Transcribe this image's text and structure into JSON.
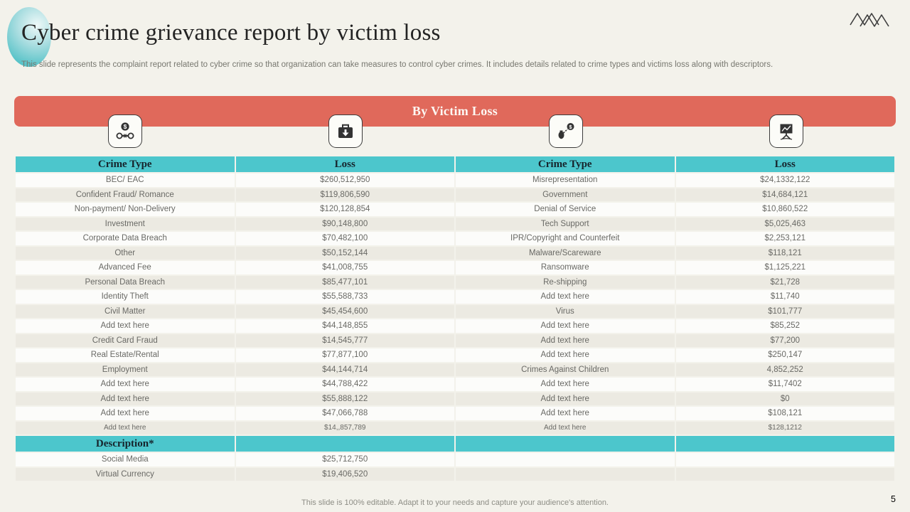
{
  "slide": {
    "title": "Cyber crime grievance report by victim loss",
    "subtitle": "This slide represents the complaint report related to cyber crime so that organization can take measures to control cyber crimes. It includes details related to crime types and victims loss along with descriptors.",
    "footer_note": "This slide is 100% editable. Adapt it to your needs and capture your audience's attention.",
    "page_number": "5"
  },
  "banner": {
    "label": "By Victim Loss"
  },
  "icons": [
    {
      "name": "dollar-handcuffs-icon"
    },
    {
      "name": "briefcase-download-icon"
    },
    {
      "name": "chained-dollar-icon"
    },
    {
      "name": "declining-chart-board-icon"
    }
  ],
  "colors": {
    "background": "#f3f2eb",
    "banner_red": "#e0695b",
    "table_header_teal": "#4cc6cc",
    "accent_circle_teal": "#58c3c8",
    "row_alt": "#eceae2"
  },
  "table": {
    "headers": [
      "Crime Type",
      "Loss",
      "Crime Type",
      "Loss"
    ],
    "rows": [
      [
        "BEC/ EAC",
        "$260,512,950",
        "Misrepresentation",
        "$24,1332,122"
      ],
      [
        "Confident Fraud/ Romance",
        "$119,806,590",
        "Government",
        "$14,684,121"
      ],
      [
        "Non-payment/ Non-Delivery",
        "$120,128,854",
        "Denial of Service",
        "$10,860,522"
      ],
      [
        "Investment",
        "$90,148,800",
        "Tech Support",
        "$5,025,463"
      ],
      [
        "Corporate Data Breach",
        "$70,482,100",
        "IPR/Copyright and Counterfeit",
        "$2,253,121"
      ],
      [
        "Other",
        "$50,152,144",
        "Malware/Scareware",
        "$118,121"
      ],
      [
        "Advanced Fee",
        "$41,008,755",
        "Ransomware",
        "$1,125,221"
      ],
      [
        "Personal Data Breach",
        "$85,477,101",
        "Re-shipping",
        "$21,728"
      ],
      [
        "Identity Theft",
        "$55,588,733",
        "Add text here",
        "$11,740"
      ],
      [
        "Civil Matter",
        "$45,454,600",
        "Virus",
        "$101,777"
      ],
      [
        "Add text here",
        "$44,148,855",
        "Add text here",
        "$85,252"
      ],
      [
        "Credit Card Fraud",
        "$14,545,777",
        "Add text here",
        "$77,200"
      ],
      [
        "Real Estate/Rental",
        "$77,877,100",
        "Add text here",
        "$250,147"
      ],
      [
        "Employment",
        "$44,144,714",
        "Crimes Against Children",
        "4,852,252"
      ],
      [
        "Add text here",
        "$44,788,422",
        "Add text here",
        "$11,7402"
      ],
      [
        "Add text here",
        "$55,888,122",
        "Add text here",
        "$0"
      ],
      [
        "Add text here",
        "$47,066,788",
        "Add text here",
        "$108,121"
      ],
      [
        "Add text here",
        "$14,,857,789",
        "Add text here",
        "$128,1212"
      ]
    ],
    "description_header": "Description*",
    "description_rows": [
      [
        "Social Media",
        "$25,712,750",
        "",
        ""
      ],
      [
        "Virtual Currency",
        "$19,406,520",
        "",
        ""
      ]
    ]
  }
}
